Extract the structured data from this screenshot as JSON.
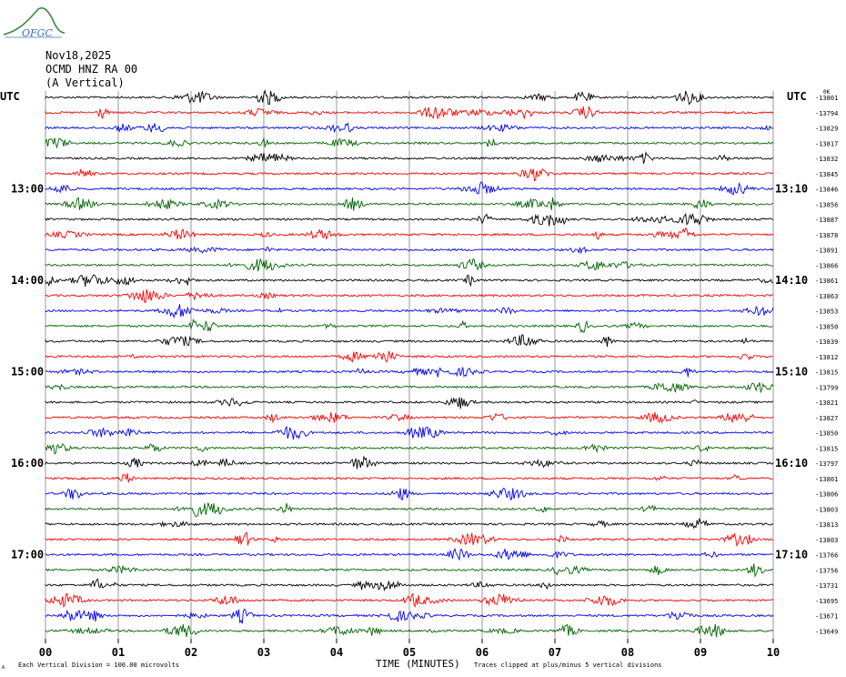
{
  "logo_text": "OFGC",
  "header": {
    "date": "Nov18,2025",
    "station": "OCMD HNZ RA 00",
    "component": "(A Vertical)"
  },
  "utc_left": "UTC",
  "utc_right": "UTC",
  "top_right_marker": "0K",
  "x_axis_title": "TIME (MINUTES)",
  "footer_left": "Each Vertical Division =  100.00 microvolts",
  "footer_left_symbol": "A",
  "footer_right": "Traces clipped at plus/minus 5 vertical divisions",
  "colors": {
    "trace_cycle": [
      "#000000",
      "#ff0000",
      "#0000ff",
      "#006400"
    ],
    "grid": "#808080"
  },
  "chart_data": {
    "type": "line",
    "xlabel": "TIME (MINUTES)",
    "x_ticks": [
      "00",
      "01",
      "02",
      "03",
      "04",
      "05",
      "06",
      "07",
      "08",
      "09",
      "10"
    ],
    "xlim": [
      0,
      10
    ],
    "left_time_labels": [
      {
        "row": 6,
        "text": "13:00"
      },
      {
        "row": 12,
        "text": "14:00"
      },
      {
        "row": 18,
        "text": "15:00"
      },
      {
        "row": 24,
        "text": "16:00"
      },
      {
        "row": 30,
        "text": "17:00"
      }
    ],
    "right_time_labels": [
      {
        "row": 6,
        "text": "13:10"
      },
      {
        "row": 12,
        "text": "14:10"
      },
      {
        "row": 18,
        "text": "15:10"
      },
      {
        "row": 24,
        "text": "16:10"
      },
      {
        "row": 30,
        "text": "17:10"
      }
    ],
    "trace_offsets": [
      "-13801",
      "-13794",
      "-13829",
      "-13817",
      "-13832",
      "-13845",
      "-13846",
      "-13856",
      "-13887",
      "-13878",
      "-13891",
      "-13866",
      "-13861",
      "-13863",
      "-13853",
      "-13850",
      "-13839",
      "-13812",
      "-13815",
      "-13799",
      "-13821",
      "-13827",
      "-13850",
      "-13815",
      "-13797",
      "-13801",
      "-13806",
      "-13803",
      "-13813",
      "-13803",
      "-13766",
      "-13756",
      "-13731",
      "-13695",
      "-13671",
      "-13649"
    ]
  }
}
